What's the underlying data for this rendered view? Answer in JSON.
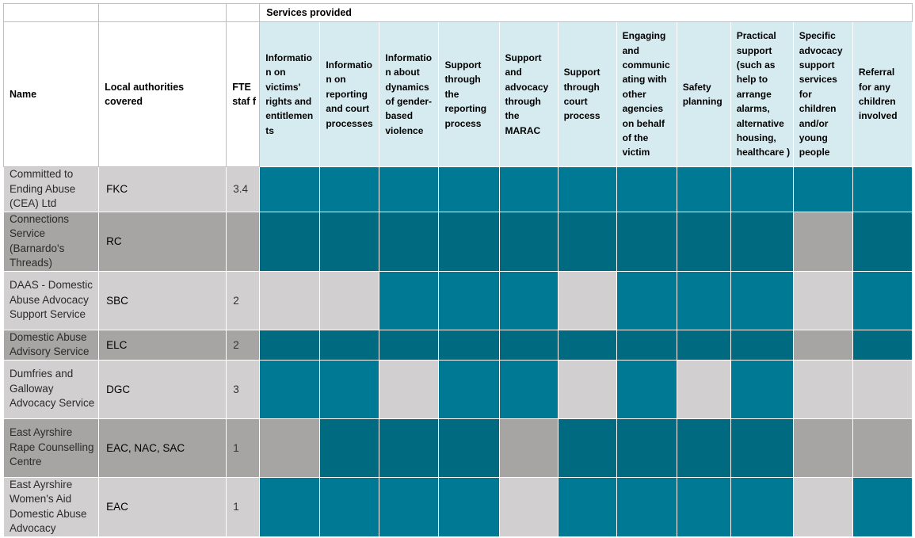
{
  "header": {
    "services_provided": "Services provided",
    "name": "Name",
    "la": "Local authorities covered",
    "fte": "FTE staf f"
  },
  "services": [
    "Informatio n on victims' rights and entitlemen ts",
    "Informatio n on reporting and court processes",
    "Informatio n about dynamics of gender-based violence",
    "Support through the reporting process",
    "Support and advocacy through the MARAC",
    "Support through court process",
    "Engaging and communic ating with other agencies on behalf of the victim",
    "Safety planning",
    "Practical support (such as help to arrange alarms, alternative housing, healthcare )",
    "Specific advocacy support services for children and/or young people",
    "Referral for any children involved"
  ],
  "rows": [
    {
      "name": "Committed to Ending Abuse (CEA) Ltd",
      "la": "FKC",
      "fte": "3.4",
      "services": [
        true,
        true,
        true,
        true,
        true,
        true,
        true,
        true,
        true,
        true,
        true
      ]
    },
    {
      "name": "Connections Service (Barnardo's Threads)",
      "la": "RC",
      "fte": "",
      "services": [
        true,
        true,
        true,
        true,
        true,
        true,
        true,
        true,
        true,
        false,
        true
      ]
    },
    {
      "name": "DAAS - Domestic Abuse Advocacy Support Service",
      "la": "SBC",
      "fte": "2",
      "services": [
        false,
        false,
        true,
        true,
        true,
        false,
        true,
        true,
        true,
        false,
        true
      ]
    },
    {
      "name": "Domestic Abuse Advisory Service",
      "la": "ELC",
      "fte": "2",
      "services": [
        true,
        true,
        true,
        true,
        true,
        true,
        true,
        true,
        true,
        false,
        true
      ]
    },
    {
      "name": "Dumfries and Galloway Advocacy Service",
      "la": "DGC",
      "fte": "3",
      "services": [
        true,
        true,
        false,
        true,
        true,
        false,
        true,
        false,
        true,
        false,
        false
      ]
    },
    {
      "name": "East Ayrshire Rape Counselling Centre",
      "la": "EAC, NAC, SAC",
      "fte": "1",
      "services": [
        false,
        true,
        true,
        true,
        false,
        true,
        true,
        true,
        true,
        false,
        false
      ]
    },
    {
      "name": "East Ayrshire Women's Aid Domestic Abuse Advocacy",
      "la": "EAC",
      "fte": "1",
      "services": [
        true,
        true,
        true,
        true,
        false,
        true,
        true,
        true,
        true,
        false,
        true
      ]
    }
  ],
  "colors": {
    "provided": "#007a94",
    "provided_dark": "#006a80",
    "header_bg": "#d6ebf0",
    "row_light": "#d1cfcf",
    "row_dark": "#a6a5a4"
  }
}
